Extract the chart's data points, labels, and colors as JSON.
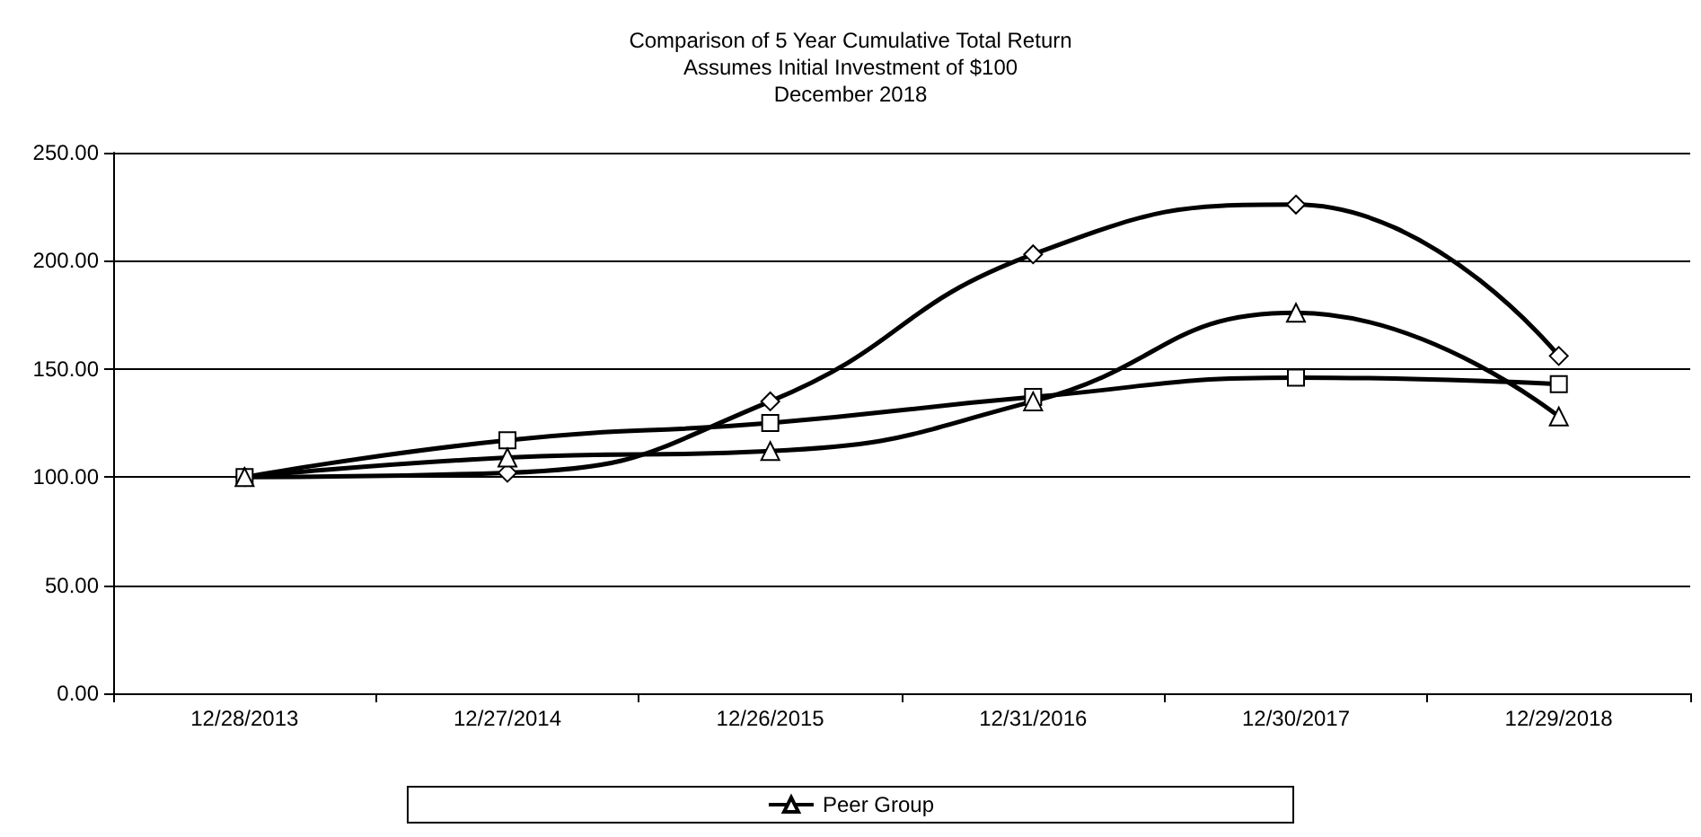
{
  "chart_data": {
    "type": "line",
    "title": "Comparison of 5 Year Cumulative Total Return\nAssumes Initial Investment of $100\nDecember 2018",
    "categories": [
      "12/28/2013",
      "12/27/2014",
      "12/26/2015",
      "12/31/2016",
      "12/30/2017",
      "12/29/2018"
    ],
    "series": [
      {
        "color": "#000000",
        "marker": "diamond",
        "values": [
          100,
          102,
          135,
          203,
          226,
          156
        ]
      },
      {
        "color": "#000000",
        "marker": "square",
        "values": [
          100,
          117,
          125,
          137,
          146,
          143
        ]
      },
      {
        "name": "Peer Group",
        "color": "#000000",
        "marker": "triangle",
        "values": [
          100,
          109,
          112,
          135,
          176,
          128
        ]
      }
    ],
    "ylim": [
      0,
      250
    ],
    "yticks": [
      {
        "value": 0,
        "label": "0.00"
      },
      {
        "value": 50,
        "label": "50.00"
      },
      {
        "value": 100,
        "label": "100.00"
      },
      {
        "value": 150,
        "label": "150.00"
      },
      {
        "value": 200,
        "label": "200.00"
      },
      {
        "value": 250,
        "label": "250.00"
      }
    ],
    "grid": "y",
    "legend": "bottom",
    "line_style": "solid"
  }
}
